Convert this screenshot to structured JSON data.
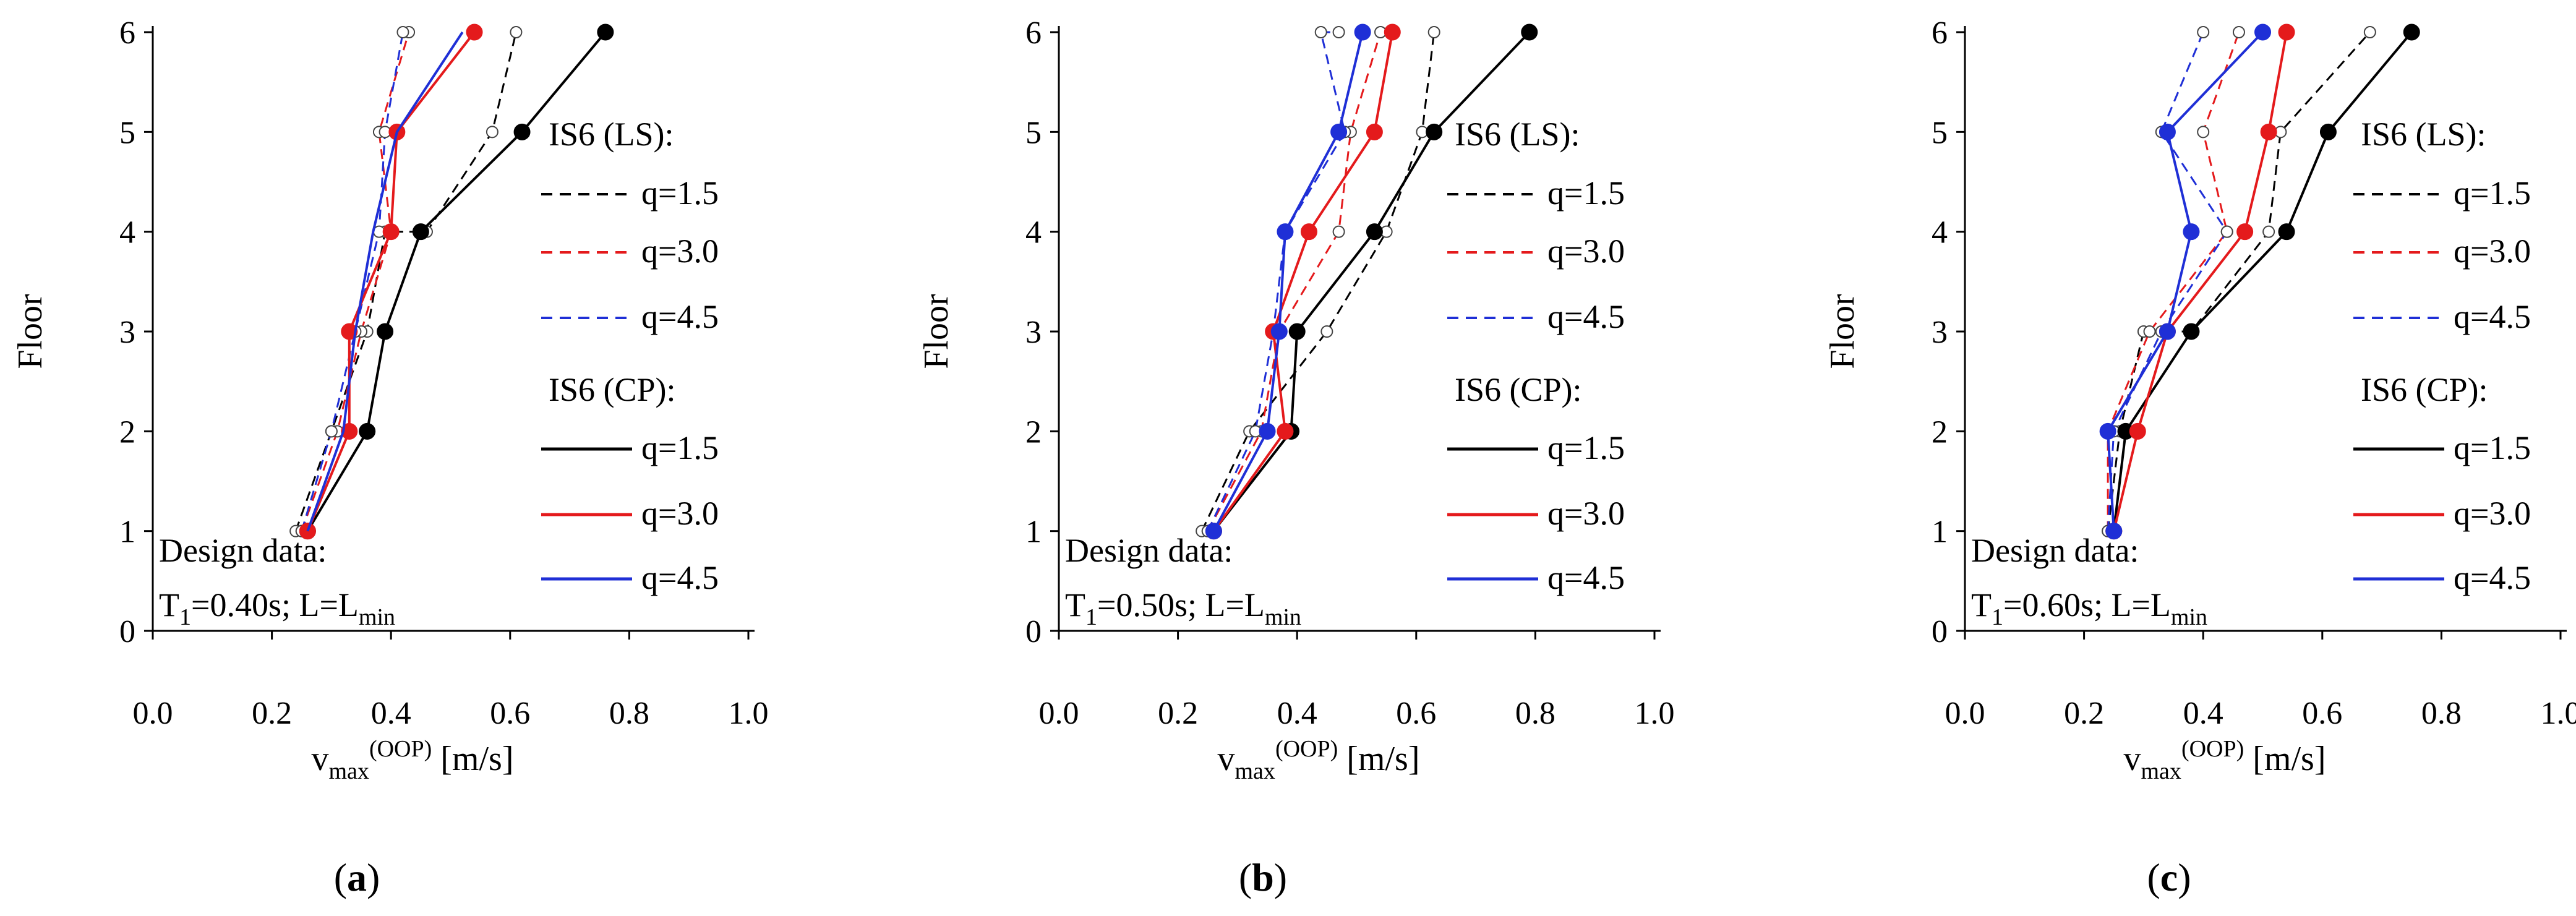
{
  "colors": {
    "black": "#000000",
    "red": "#e41a1c",
    "blue": "#1f2fd6"
  },
  "legend": {
    "ls_title": "IS6 (LS):",
    "cp_title": "IS6 (CP):",
    "q_labels": [
      "q=1.5",
      "q=3.0",
      "q=4.5"
    ]
  },
  "axes": {
    "ylabel": "Floor",
    "xlabel_main": "v",
    "xlabel_sub": "max",
    "xlabel_sup": "(OOP)",
    "xlabel_unit": " [m/s]",
    "xticks": [
      "0.0",
      "0.2",
      "0.4",
      "0.6",
      "0.8",
      "1.0"
    ],
    "yticks": [
      "0",
      "1",
      "2",
      "3",
      "4",
      "5",
      "6"
    ]
  },
  "design": {
    "title": "Design data:",
    "t_prefix": "T",
    "t_sub": "1",
    "l_text": "; L=L",
    "l_sub": "min"
  },
  "chart_data": [
    {
      "type": "line",
      "caption_letter": "a",
      "xlabel": "vmax(OOP) [m/s]",
      "ylabel": "Floor",
      "xlim": [
        0.0,
        1.0
      ],
      "ylim": [
        0,
        6
      ],
      "design_t": "=0.40s",
      "series": [
        {
          "name": "IS6 (LS) q=1.5",
          "color": "black",
          "dashed": true,
          "marker": "open",
          "x": [
            0.24,
            0.3,
            0.36,
            0.39,
            0.46,
            0.57,
            0.61
          ],
          "y": [
            1,
            2,
            3,
            4,
            4,
            5,
            6
          ]
        },
        {
          "name": "IS6 (LS) q=3.0",
          "color": "red",
          "dashed": true,
          "marker": "open",
          "x": [
            0.25,
            0.31,
            0.35,
            0.4,
            0.38,
            0.43
          ],
          "y": [
            1,
            2,
            3,
            4,
            5,
            6
          ]
        },
        {
          "name": "IS6 (LS) q=4.5",
          "color": "blue",
          "dashed": true,
          "marker": "open",
          "x": [
            0.25,
            0.3,
            0.34,
            0.38,
            0.39,
            0.42
          ],
          "y": [
            1,
            2,
            3,
            4,
            5,
            6
          ]
        },
        {
          "name": "IS6 (CP) q=1.5",
          "color": "black",
          "dashed": false,
          "marker": "filled",
          "x": [
            0.26,
            0.36,
            0.39,
            0.45,
            0.62,
            0.76
          ],
          "y": [
            1,
            2,
            3,
            4,
            5,
            6
          ]
        },
        {
          "name": "IS6 (CP) q=3.0",
          "color": "red",
          "dashed": false,
          "marker": "filled",
          "x": [
            0.26,
            0.33,
            0.33,
            0.4,
            0.41,
            0.54
          ],
          "y": [
            1,
            2,
            3,
            4,
            5,
            6
          ]
        },
        {
          "name": "IS6 (CP) q=4.5",
          "color": "blue",
          "dashed": false,
          "marker": "none",
          "x": [
            0.26,
            0.32,
            0.34,
            0.37,
            0.41,
            0.52
          ],
          "y": [
            1,
            2,
            3,
            4,
            5,
            6
          ]
        }
      ]
    },
    {
      "type": "line",
      "caption_letter": "b",
      "xlabel": "vmax(OOP) [m/s]",
      "ylabel": "Floor",
      "xlim": [
        0.0,
        1.0
      ],
      "ylim": [
        0,
        6
      ],
      "design_t": "=0.50s",
      "series": [
        {
          "name": "IS6 (LS) q=1.5",
          "color": "black",
          "dashed": true,
          "marker": "open",
          "x": [
            0.24,
            0.32,
            0.45,
            0.55,
            0.61,
            0.63
          ],
          "y": [
            1,
            2,
            3,
            4,
            5,
            6
          ]
        },
        {
          "name": "IS6 (LS) q=3.0",
          "color": "red",
          "dashed": true,
          "marker": "open",
          "x": [
            0.25,
            0.34,
            0.37,
            0.47,
            0.49,
            0.54
          ],
          "y": [
            1,
            2,
            3,
            4,
            5,
            6
          ]
        },
        {
          "name": "IS6 (LS) q=4.5",
          "color": "blue",
          "dashed": true,
          "marker": "open",
          "x": [
            0.25,
            0.33,
            0.36,
            0.38,
            0.48,
            0.44,
            0.47
          ],
          "y": [
            1,
            2,
            3,
            4,
            5,
            6,
            6
          ]
        },
        {
          "name": "IS6 (CP) q=1.5",
          "color": "black",
          "dashed": false,
          "marker": "filled",
          "x": [
            0.26,
            0.39,
            0.4,
            0.53,
            0.63,
            0.79
          ],
          "y": [
            1,
            2,
            3,
            4,
            5,
            6
          ]
        },
        {
          "name": "IS6 (CP) q=3.0",
          "color": "red",
          "dashed": false,
          "marker": "filled",
          "x": [
            0.26,
            0.38,
            0.36,
            0.42,
            0.53,
            0.56
          ],
          "y": [
            1,
            2,
            3,
            4,
            5,
            6
          ]
        },
        {
          "name": "IS6 (CP) q=4.5",
          "color": "blue",
          "dashed": false,
          "marker": "filled",
          "x": [
            0.26,
            0.35,
            0.37,
            0.38,
            0.47,
            0.51
          ],
          "y": [
            1,
            2,
            3,
            4,
            5,
            6
          ]
        }
      ]
    },
    {
      "type": "line",
      "caption_letter": "c",
      "xlabel": "vmax(OOP) [m/s]",
      "ylabel": "Floor",
      "xlim": [
        0.0,
        1.0
      ],
      "ylim": [
        0,
        6
      ],
      "design_t": "=0.60s",
      "series": [
        {
          "name": "IS6 (LS) q=1.5",
          "color": "black",
          "dashed": true,
          "marker": "open",
          "x": [
            0.24,
            0.26,
            0.3,
            0.38,
            0.51,
            0.53,
            0.68
          ],
          "y": [
            1,
            2,
            3,
            3,
            4,
            5,
            6
          ]
        },
        {
          "name": "IS6 (LS) q=3.0",
          "color": "red",
          "dashed": true,
          "marker": "open",
          "x": [
            0.24,
            0.24,
            0.31,
            0.44,
            0.4,
            0.46
          ],
          "y": [
            1,
            2,
            3,
            4,
            5,
            6
          ]
        },
        {
          "name": "IS6 (LS) q=4.5",
          "color": "blue",
          "dashed": true,
          "marker": "open",
          "x": [
            0.24,
            0.25,
            0.33,
            0.44,
            0.33,
            0.4
          ],
          "y": [
            1,
            2,
            3,
            4,
            5,
            6
          ]
        },
        {
          "name": "IS6 (CP) q=1.5",
          "color": "black",
          "dashed": false,
          "marker": "filled",
          "x": [
            0.25,
            0.27,
            0.38,
            0.54,
            0.61,
            0.75
          ],
          "y": [
            1,
            2,
            3,
            4,
            5,
            6
          ]
        },
        {
          "name": "IS6 (CP) q=3.0",
          "color": "red",
          "dashed": false,
          "marker": "filled",
          "x": [
            0.25,
            0.29,
            0.34,
            0.47,
            0.51,
            0.54
          ],
          "y": [
            1,
            2,
            3,
            4,
            5,
            6
          ]
        },
        {
          "name": "IS6 (CP) q=4.5",
          "color": "blue",
          "dashed": false,
          "marker": "filled",
          "x": [
            0.25,
            0.24,
            0.34,
            0.38,
            0.34,
            0.5
          ],
          "y": [
            1,
            2,
            3,
            4,
            5,
            6
          ]
        }
      ]
    }
  ]
}
